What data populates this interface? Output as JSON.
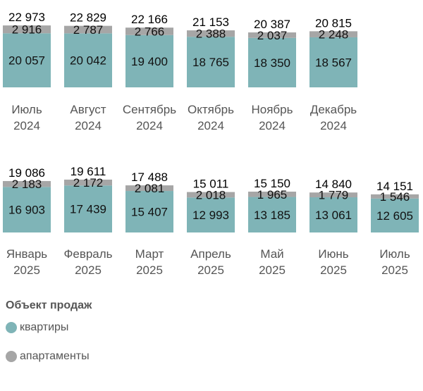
{
  "chart_data": {
    "type": "bar",
    "stacked": true,
    "title": "",
    "categories": [
      [
        "Июль",
        "2024"
      ],
      [
        "Август",
        "2024"
      ],
      [
        "Сентябрь",
        "2024"
      ],
      [
        "Октябрь",
        "2024"
      ],
      [
        "Ноябрь",
        "2024"
      ],
      [
        "Декабрь",
        "2024"
      ],
      [
        "Январь",
        "2025"
      ],
      [
        "Февраль",
        "2025"
      ],
      [
        "Март",
        "2025"
      ],
      [
        "Апрель",
        "2025"
      ],
      [
        "Май",
        "2025"
      ],
      [
        "Июнь",
        "2025"
      ],
      [
        "Июль",
        "2025"
      ]
    ],
    "series": [
      {
        "name": "квартиры",
        "labels": [
          "20 057",
          "20 042",
          "19 400",
          "18 765",
          "18 350",
          "18 567",
          "16 903",
          "17 439",
          "15 407",
          "12 993",
          "13 185",
          "13 061",
          "12 605"
        ],
        "values": [
          20057,
          20042,
          19400,
          18765,
          18350,
          18567,
          16903,
          17439,
          15407,
          12993,
          13185,
          13061,
          12605
        ]
      },
      {
        "name": "апартаменты",
        "labels": [
          "2 916",
          "2 787",
          "2 766",
          "2 388",
          "2 037",
          "2 248",
          "2 183",
          "2 172",
          "2 081",
          "2 018",
          "1 965",
          "1 779",
          "1 546"
        ],
        "values": [
          2916,
          2787,
          2766,
          2388,
          2037,
          2248,
          2183,
          2172,
          2081,
          2018,
          1965,
          1779,
          1546
        ]
      }
    ],
    "totals": [
      "22 973",
      "22 829",
      "22 166",
      "21 153",
      "20 387",
      "20 815",
      "19 086",
      "19 611",
      "17 488",
      "15 011",
      "15 150",
      "14 840",
      "14 151"
    ],
    "rows": [
      6,
      7
    ],
    "y_scale_max": 23000,
    "colors": {
      "flats": "#7fb4b7",
      "apartments": "#a6a6a6"
    },
    "legend": {
      "title": "Объект продаж",
      "position": "bottom-left"
    }
  }
}
